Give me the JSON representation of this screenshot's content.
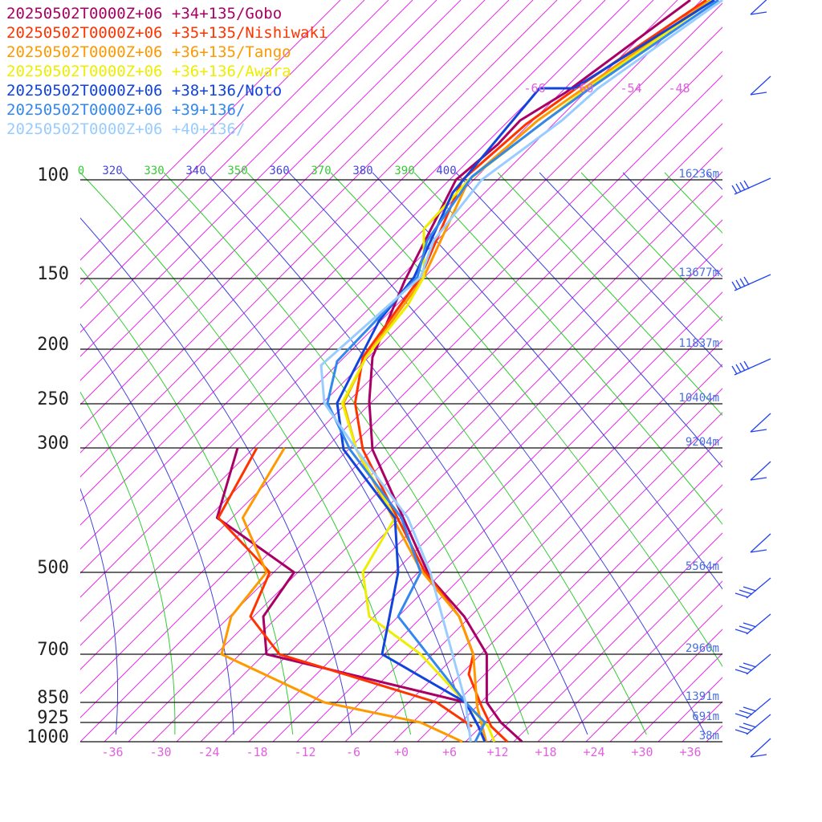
{
  "chart_data": {
    "type": "line",
    "title": "",
    "xlabel": "",
    "ylabel": "",
    "pressure_levels": [
      100,
      150,
      200,
      250,
      300,
      500,
      700,
      850,
      925,
      1000
    ],
    "temperature_ticks": [
      "-36",
      "-30",
      "-24",
      "-18",
      "-12",
      "-6",
      "+0",
      "+6",
      "+12",
      "+18",
      "+24",
      "+30",
      "+36"
    ],
    "theta_labels": [
      {
        "text": "0",
        "color": "#33cc33"
      },
      {
        "text": "320",
        "color": "#4444dd"
      },
      {
        "text": "330",
        "color": "#33cc33"
      },
      {
        "text": "340",
        "color": "#4444dd"
      },
      {
        "text": "350",
        "color": "#33cc33"
      },
      {
        "text": "360",
        "color": "#4444dd"
      },
      {
        "text": "370",
        "color": "#33cc33"
      },
      {
        "text": "380",
        "color": "#4444dd"
      },
      {
        "text": "390",
        "color": "#33cc33"
      },
      {
        "text": "400",
        "color": "#4444dd"
      }
    ],
    "isotherm_top_labels": [
      "-66",
      "-60",
      "-54",
      "-48"
    ],
    "height_labels": [
      "16236m",
      "13677m",
      "11837m",
      "10404m",
      "9204m",
      "5564m",
      "2960m",
      "1391m",
      "691m",
      "38m"
    ],
    "series": [
      {
        "name": "20250502T0000Z+06 +34+135/Gobo",
        "color": "#aa0066",
        "temperature": [
          [
            0.585,
            224
          ],
          [
            0.505,
            350
          ],
          [
            0.455,
            445
          ],
          [
            0.45,
            500
          ],
          [
            0.455,
            560
          ],
          [
            0.545,
            720
          ],
          [
            0.598,
            768
          ],
          [
            0.633,
            815
          ],
          [
            0.633,
            875
          ],
          [
            0.655,
            900
          ],
          [
            0.688,
            924
          ]
        ],
        "dewpoint": [
          [
            0.245,
            558
          ],
          [
            0.213,
            645
          ],
          [
            0.333,
            713
          ],
          [
            0.285,
            768
          ],
          [
            0.29,
            815
          ],
          [
            0.6,
            875
          ]
        ]
      },
      {
        "name": "20250502T0000Z+06 +35+135/Nishiwaki",
        "color": "#ff3300",
        "temperature": [
          [
            0.595,
            224
          ],
          [
            0.53,
            345
          ],
          [
            0.44,
            445
          ],
          [
            0.428,
            502
          ],
          [
            0.44,
            560
          ],
          [
            0.535,
            710
          ],
          [
            0.59,
            768
          ],
          [
            0.612,
            815
          ],
          [
            0.605,
            840
          ],
          [
            0.625,
            880
          ],
          [
            0.64,
            905
          ],
          [
            0.665,
            924
          ]
        ],
        "dewpoint": [
          [
            0.275,
            558
          ],
          [
            0.215,
            645
          ],
          [
            0.295,
            713
          ],
          [
            0.265,
            768
          ],
          [
            0.31,
            815
          ],
          [
            0.555,
            875
          ],
          [
            0.61,
            905
          ]
        ]
      },
      {
        "name": "20250502T0000Z+06 +36+135/Tango",
        "color": "#ff9900",
        "temperature": [
          [
            0.605,
            224
          ],
          [
            0.535,
            345
          ],
          [
            0.445,
            445
          ],
          [
            0.41,
            502
          ],
          [
            0.43,
            560
          ],
          [
            0.53,
            710
          ],
          [
            0.59,
            768
          ],
          [
            0.612,
            815
          ],
          [
            0.618,
            880
          ],
          [
            0.632,
            924
          ]
        ],
        "dewpoint": [
          [
            0.318,
            558
          ],
          [
            0.253,
            645
          ],
          [
            0.29,
            713
          ],
          [
            0.235,
            768
          ],
          [
            0.22,
            815
          ],
          [
            0.38,
            875
          ],
          [
            0.53,
            900
          ],
          [
            0.595,
            924
          ]
        ]
      },
      {
        "name": "20250502T0000Z+06 +36+136/Awara",
        "color": "#eeee00",
        "temperature": [
          [
            0.605,
            224
          ],
          [
            0.535,
            285
          ],
          [
            0.535,
            345
          ],
          [
            0.51,
            380
          ],
          [
            0.445,
            445
          ],
          [
            0.408,
            502
          ],
          [
            0.43,
            560
          ],
          [
            0.49,
            645
          ],
          [
            0.44,
            713
          ],
          [
            0.45,
            768
          ],
          [
            0.53,
            815
          ],
          [
            0.605,
            880
          ],
          [
            0.635,
            905
          ],
          [
            0.645,
            924
          ]
        ],
        "dewpoint": []
      },
      {
        "name": "20250502T0000Z+06 +38+136/Noto",
        "color": "#1144dd",
        "temperature": [
          [
            0.715,
            110
          ],
          [
            0.58,
            240
          ],
          [
            0.52,
            345
          ],
          [
            0.465,
            400
          ],
          [
            0.4,
            502
          ],
          [
            0.41,
            560
          ],
          [
            0.49,
            645
          ],
          [
            0.495,
            713
          ],
          [
            0.47,
            815
          ],
          [
            0.6,
            875
          ],
          [
            0.62,
            905
          ],
          [
            0.63,
            924
          ]
        ],
        "dewpoint": []
      },
      {
        "name": "20250502T0000Z+06 +39+136/",
        "color": "#3388ee",
        "temperature": [
          [
            0.61,
            220
          ],
          [
            0.54,
            300
          ],
          [
            0.525,
            345
          ],
          [
            0.4,
            450
          ],
          [
            0.385,
            502
          ],
          [
            0.42,
            560
          ],
          [
            0.5,
            645
          ],
          [
            0.53,
            713
          ],
          [
            0.495,
            768
          ],
          [
            0.6,
            875
          ],
          [
            0.63,
            900
          ],
          [
            0.615,
            924
          ]
        ],
        "dewpoint": []
      },
      {
        "name": "20250502T0000Z+06 +40+136/",
        "color": "#99ccff",
        "temperature": [
          [
            0.625,
            224
          ],
          [
            0.55,
            300
          ],
          [
            0.53,
            345
          ],
          [
            0.375,
            455
          ],
          [
            0.38,
            502
          ],
          [
            0.43,
            560
          ],
          [
            0.51,
            645
          ],
          [
            0.545,
            713
          ],
          [
            0.6,
            875
          ],
          [
            0.608,
            924
          ]
        ],
        "dewpoint": []
      }
    ],
    "wind_barbs": [
      {
        "level": "top",
        "shape": "light"
      },
      {
        "level": "top2",
        "shape": "light"
      },
      {
        "level": 100,
        "shape": "strong"
      },
      {
        "level": 150,
        "shape": "strong"
      },
      {
        "level": 200,
        "shape": "strong"
      },
      {
        "level": 250,
        "shape": "light"
      },
      {
        "level": 300,
        "shape": "light"
      },
      {
        "level": 400,
        "shape": "light"
      },
      {
        "level": 500,
        "shape": "medium"
      },
      {
        "level": 600,
        "shape": "medium"
      },
      {
        "level": 700,
        "shape": "medium"
      },
      {
        "level": 850,
        "shape": "medium"
      },
      {
        "level": 925,
        "shape": "medium"
      },
      {
        "level": 1000,
        "shape": "light"
      }
    ],
    "grid": true,
    "legend_position": "top-left"
  }
}
